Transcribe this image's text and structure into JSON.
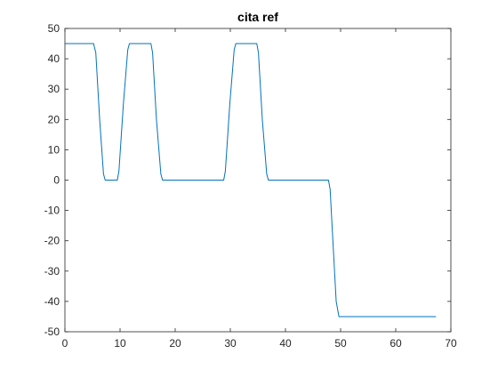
{
  "chart_data": {
    "type": "line",
    "title": "cita ref",
    "xlabel": "",
    "ylabel": "",
    "xlim": [
      0,
      70
    ],
    "ylim": [
      -50,
      50
    ],
    "xticks": [
      0,
      10,
      20,
      30,
      40,
      50,
      60,
      70
    ],
    "yticks": [
      -50,
      -40,
      -30,
      -20,
      -10,
      0,
      10,
      20,
      30,
      40,
      50
    ],
    "grid": false,
    "box": true,
    "series": [
      {
        "color": "#0072BD",
        "x": [
          0,
          5.2,
          5.6,
          6.3,
          7.0,
          7.3,
          9.5,
          9.8,
          10.6,
          11.4,
          11.7,
          15.6,
          15.9,
          16.6,
          17.4,
          17.7,
          28.8,
          29.1,
          29.9,
          30.7,
          31.0,
          34.8,
          35.1,
          35.8,
          36.6,
          36.9,
          47.8,
          48.1,
          48.6,
          49.2,
          49.7,
          67.3
        ],
        "y": [
          45,
          45,
          42,
          20,
          2,
          0,
          0,
          3,
          25,
          43,
          45,
          45,
          42,
          20,
          2,
          0,
          0,
          3,
          25,
          43,
          45,
          45,
          42,
          20,
          2,
          0,
          0,
          -3,
          -20,
          -40,
          -45,
          -45
        ]
      }
    ]
  }
}
